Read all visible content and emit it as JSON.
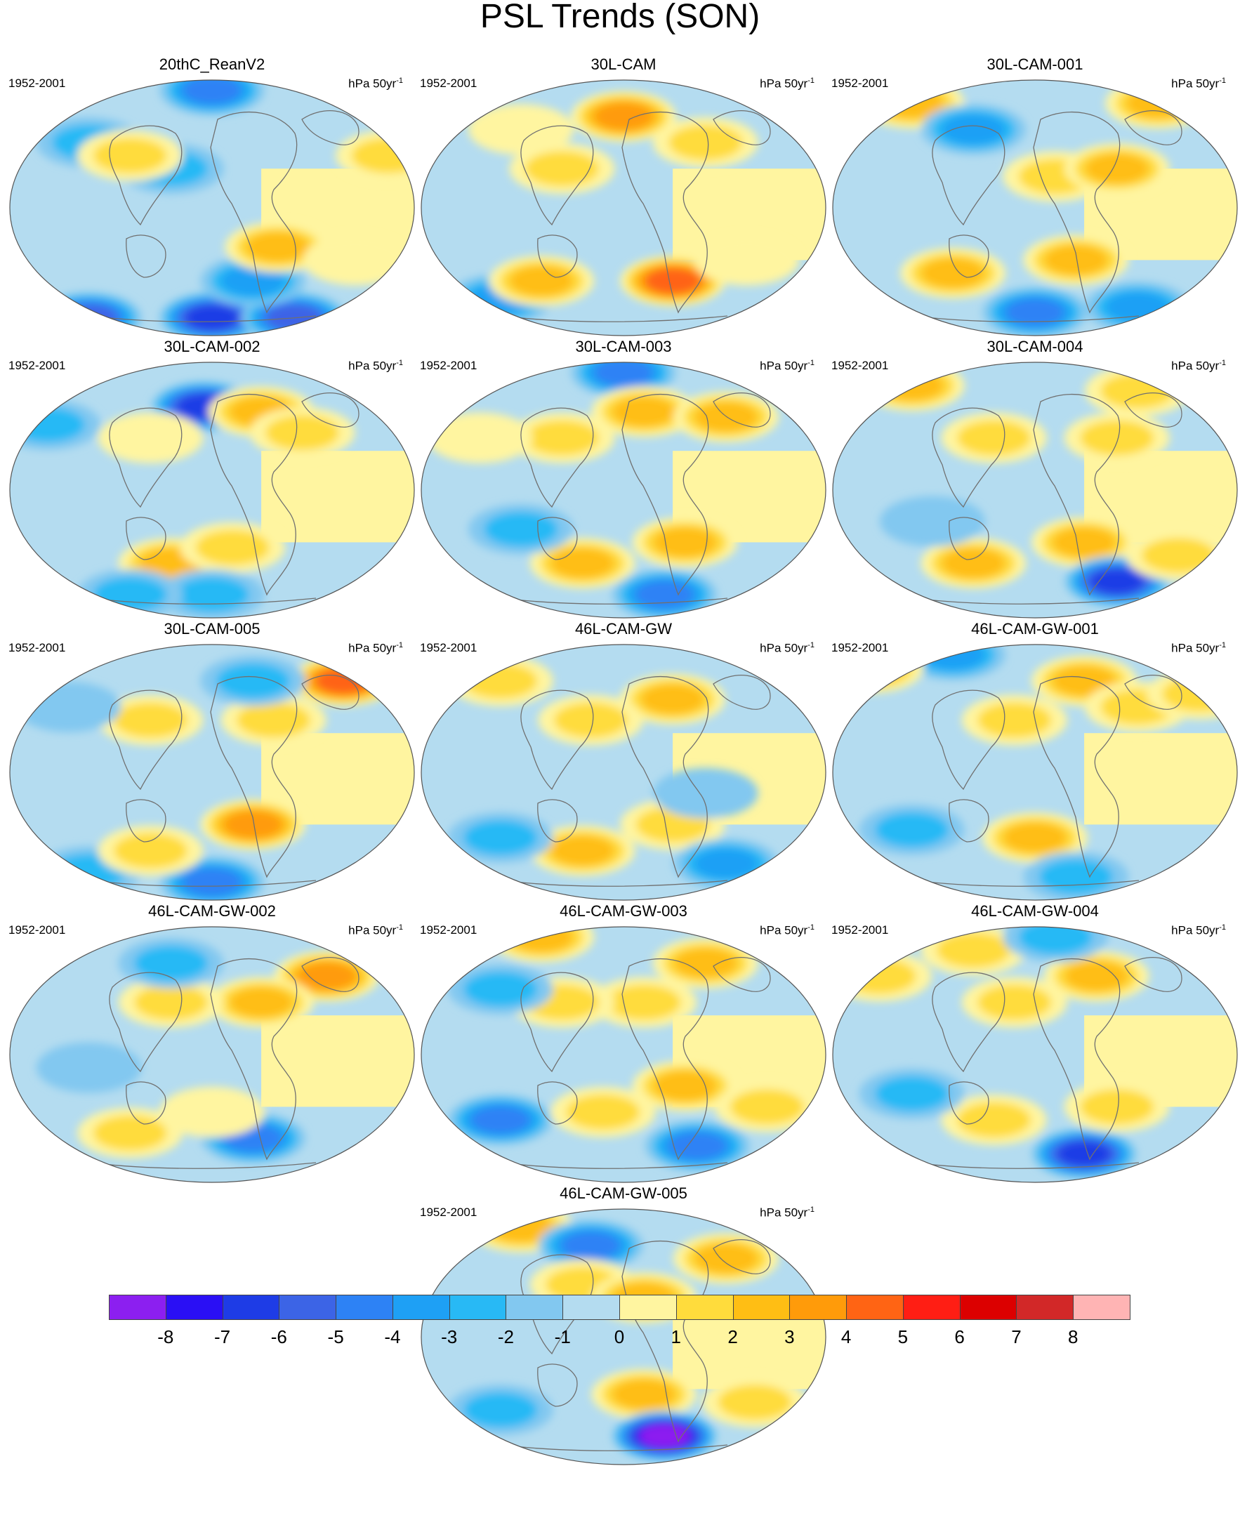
{
  "figure": {
    "title": "PSL Trends (SON)",
    "units": "hPa 50yr",
    "units_exponent": "-1",
    "period": "1952-2001"
  },
  "panels": [
    {
      "title": "20thC_ReanV2",
      "period": "1952-2001",
      "units": "hPa 50yr",
      "units_exponent": "-1",
      "features": [
        [
          0.5,
          0.05,
          -4
        ],
        [
          0.2,
          0.25,
          -2
        ],
        [
          0.4,
          0.35,
          -2
        ],
        [
          0.3,
          0.3,
          2
        ],
        [
          0.93,
          0.3,
          2
        ],
        [
          0.5,
          0.92,
          -6
        ],
        [
          0.2,
          0.92,
          -5
        ],
        [
          0.7,
          0.92,
          -5
        ],
        [
          0.6,
          0.78,
          -3
        ],
        [
          0.66,
          0.65,
          3
        ],
        [
          0.85,
          0.7,
          1
        ]
      ]
    },
    {
      "title": "30L-CAM",
      "period": "1952-2001",
      "units": "hPa 50yr",
      "units_exponent": "-1",
      "features": [
        [
          0.5,
          0.15,
          4
        ],
        [
          0.25,
          0.2,
          1
        ],
        [
          0.7,
          0.25,
          2
        ],
        [
          0.35,
          0.35,
          2
        ],
        [
          0.2,
          0.85,
          -3
        ],
        [
          0.3,
          0.78,
          3
        ],
        [
          0.62,
          0.78,
          5
        ],
        [
          0.8,
          0.7,
          1
        ]
      ]
    },
    {
      "title": "30L-CAM-001",
      "period": "1952-2001",
      "units": "hPa 50yr",
      "units_exponent": "-1",
      "features": [
        [
          0.2,
          0.1,
          3
        ],
        [
          0.8,
          0.1,
          3
        ],
        [
          0.35,
          0.2,
          -3
        ],
        [
          0.55,
          0.38,
          2
        ],
        [
          0.7,
          0.35,
          3
        ],
        [
          0.3,
          0.75,
          3
        ],
        [
          0.6,
          0.7,
          3
        ],
        [
          0.5,
          0.9,
          -4
        ],
        [
          0.75,
          0.88,
          -3
        ]
      ]
    },
    {
      "title": "30L-CAM-002",
      "period": "1952-2001",
      "units": "hPa 50yr",
      "units_exponent": "-1",
      "features": [
        [
          0.48,
          0.18,
          -6
        ],
        [
          0.35,
          0.3,
          1
        ],
        [
          0.62,
          0.2,
          3
        ],
        [
          0.72,
          0.28,
          2
        ],
        [
          0.1,
          0.25,
          -2
        ],
        [
          0.4,
          0.78,
          3
        ],
        [
          0.55,
          0.72,
          2
        ],
        [
          0.5,
          0.9,
          -2
        ],
        [
          0.3,
          0.9,
          -2
        ]
      ]
    },
    {
      "title": "30L-CAM-003",
      "period": "1952-2001",
      "units": "hPa 50yr",
      "units_exponent": "-1",
      "features": [
        [
          0.5,
          0.05,
          -4
        ],
        [
          0.55,
          0.2,
          3
        ],
        [
          0.75,
          0.22,
          3
        ],
        [
          0.35,
          0.3,
          2
        ],
        [
          0.15,
          0.3,
          1
        ],
        [
          0.4,
          0.78,
          3
        ],
        [
          0.65,
          0.7,
          3
        ],
        [
          0.6,
          0.9,
          -4
        ],
        [
          0.25,
          0.65,
          -2
        ]
      ]
    },
    {
      "title": "30L-CAM-004",
      "period": "1952-2001",
      "units": "hPa 50yr",
      "units_exponent": "-1",
      "features": [
        [
          0.2,
          0.1,
          3
        ],
        [
          0.75,
          0.12,
          2
        ],
        [
          0.4,
          0.3,
          2
        ],
        [
          0.7,
          0.3,
          2
        ],
        [
          0.35,
          0.78,
          3
        ],
        [
          0.62,
          0.7,
          3
        ],
        [
          0.7,
          0.85,
          -6
        ],
        [
          0.85,
          0.75,
          2
        ],
        [
          0.25,
          0.62,
          -1
        ]
      ]
    },
    {
      "title": "30L-CAM-005",
      "period": "1952-2001",
      "units": "hPa 50yr",
      "units_exponent": "-1",
      "features": [
        [
          0.82,
          0.15,
          5
        ],
        [
          0.65,
          0.3,
          2
        ],
        [
          0.6,
          0.15,
          -2
        ],
        [
          0.35,
          0.3,
          2
        ],
        [
          0.15,
          0.25,
          -1
        ],
        [
          0.6,
          0.7,
          4
        ],
        [
          0.5,
          0.92,
          -4
        ],
        [
          0.2,
          0.88,
          -2
        ],
        [
          0.35,
          0.8,
          2
        ]
      ]
    },
    {
      "title": "46L-CAM-GW",
      "period": "1952-2001",
      "units": "hPa 50yr",
      "units_exponent": "-1",
      "features": [
        [
          0.62,
          0.22,
          3
        ],
        [
          0.42,
          0.3,
          2
        ],
        [
          0.2,
          0.15,
          2
        ],
        [
          0.4,
          0.8,
          3
        ],
        [
          0.62,
          0.7,
          2
        ],
        [
          0.75,
          0.85,
          -3
        ],
        [
          0.2,
          0.75,
          -2
        ],
        [
          0.7,
          0.58,
          -1
        ]
      ]
    },
    {
      "title": "46L-CAM-GW-001",
      "period": "1952-2001",
      "units": "hPa 50yr",
      "units_exponent": "-1",
      "features": [
        [
          0.3,
          0.05,
          -3
        ],
        [
          0.62,
          0.15,
          3
        ],
        [
          0.45,
          0.3,
          2
        ],
        [
          0.75,
          0.25,
          2
        ],
        [
          0.1,
          0.1,
          3
        ],
        [
          0.5,
          0.75,
          3
        ],
        [
          0.2,
          0.72,
          -2
        ],
        [
          0.6,
          0.9,
          -2
        ],
        [
          0.9,
          0.2,
          2
        ]
      ]
    },
    {
      "title": "46L-CAM-GW-002",
      "period": "1952-2001",
      "units": "hPa 50yr",
      "units_exponent": "-1",
      "features": [
        [
          0.78,
          0.2,
          4
        ],
        [
          0.62,
          0.3,
          3
        ],
        [
          0.4,
          0.3,
          2
        ],
        [
          0.4,
          0.15,
          -2
        ],
        [
          0.2,
          0.55,
          -1
        ],
        [
          0.6,
          0.82,
          -4
        ],
        [
          0.3,
          0.8,
          2
        ],
        [
          0.5,
          0.72,
          1
        ]
      ]
    },
    {
      "title": "46L-CAM-GW-003",
      "period": "1952-2001",
      "units": "hPa 50yr",
      "units_exponent": "-1",
      "features": [
        [
          0.3,
          0.05,
          3
        ],
        [
          0.7,
          0.15,
          3
        ],
        [
          0.55,
          0.3,
          2
        ],
        [
          0.35,
          0.3,
          2
        ],
        [
          0.2,
          0.25,
          -2
        ],
        [
          0.2,
          0.75,
          -4
        ],
        [
          0.45,
          0.72,
          2
        ],
        [
          0.65,
          0.62,
          3
        ],
        [
          0.68,
          0.85,
          -4
        ],
        [
          0.85,
          0.7,
          2
        ]
      ]
    },
    {
      "title": "46L-CAM-GW-004",
      "period": "1952-2001",
      "units": "hPa 50yr",
      "units_exponent": "-1",
      "features": [
        [
          0.35,
          0.1,
          2
        ],
        [
          0.65,
          0.2,
          3
        ],
        [
          0.45,
          0.3,
          2
        ],
        [
          0.12,
          0.2,
          2
        ],
        [
          0.55,
          0.05,
          -2
        ],
        [
          0.62,
          0.88,
          -6
        ],
        [
          0.4,
          0.75,
          2
        ],
        [
          0.7,
          0.7,
          2
        ],
        [
          0.2,
          0.65,
          -2
        ]
      ]
    },
    {
      "title": "46L-CAM-GW-005",
      "period": "1952-2001",
      "units": "hPa 50yr",
      "units_exponent": "-1",
      "features": [
        [
          0.25,
          0.08,
          3
        ],
        [
          0.42,
          0.15,
          -4
        ],
        [
          0.75,
          0.2,
          3
        ],
        [
          0.4,
          0.3,
          2
        ],
        [
          0.55,
          0.35,
          3
        ],
        [
          0.55,
          0.72,
          3
        ],
        [
          0.6,
          0.88,
          -8
        ],
        [
          0.2,
          0.78,
          -2
        ],
        [
          0.82,
          0.75,
          2
        ]
      ]
    }
  ],
  "colorbar": {
    "levels": [
      "-8",
      "-7",
      "-6",
      "-5",
      "-4",
      "-3",
      "-2",
      "-1",
      "0",
      "1",
      "2",
      "3",
      "4",
      "5",
      "6",
      "7",
      "8"
    ],
    "colors": [
      "#8c1ff0",
      "#2a0ff5",
      "#1e3ce6",
      "#3c64e6",
      "#2d82f5",
      "#1ea0f5",
      "#28b9f5",
      "#82c8f0",
      "#b4dcf0",
      "#fff5a0",
      "#ffdc3c",
      "#ffbe14",
      "#ff9b0a",
      "#ff6414",
      "#ff1e14",
      "#dc0000",
      "#d22828",
      "#ffb4b4"
    ]
  }
}
